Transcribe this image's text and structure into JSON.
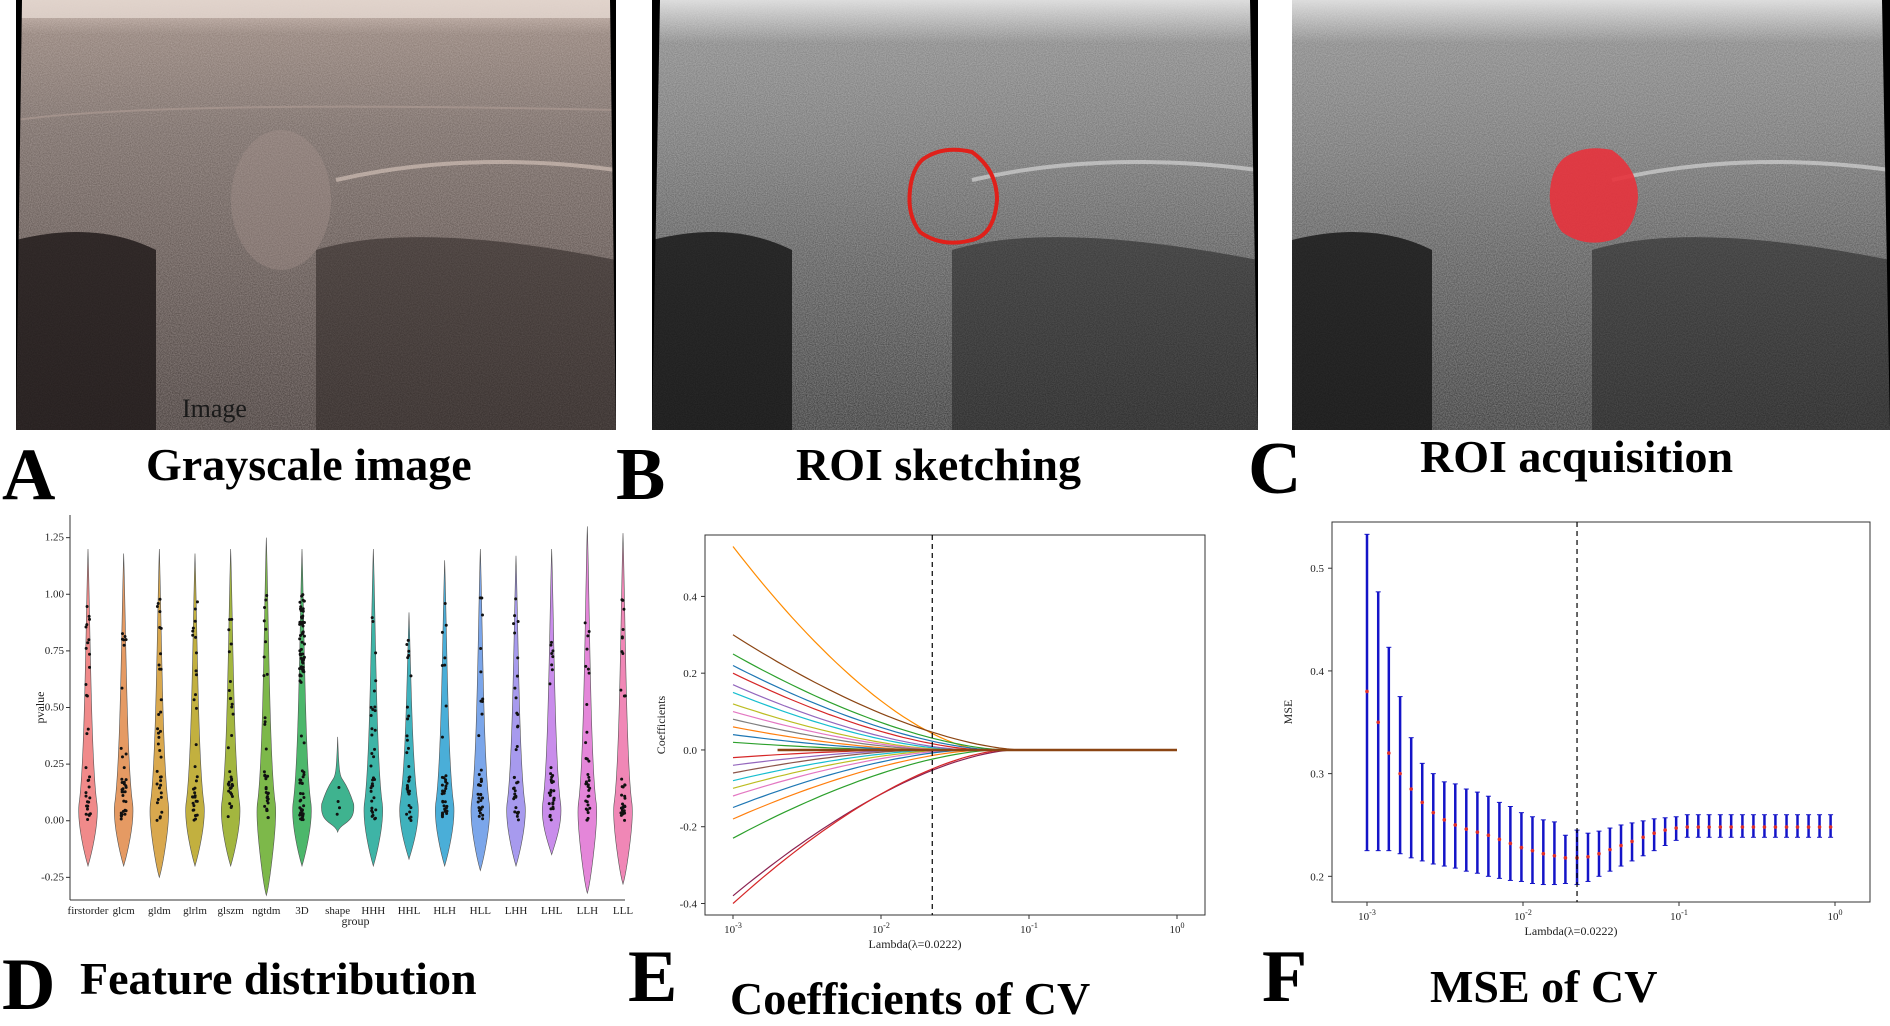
{
  "figure": {
    "panels": [
      {
        "letter": "A",
        "caption": "Grayscale image",
        "watermark": "Image"
      },
      {
        "letter": "B",
        "caption": "ROI sketching"
      },
      {
        "letter": "C",
        "caption": "ROI acquisition"
      },
      {
        "letter": "D",
        "caption": "Feature distribution"
      },
      {
        "letter": "E",
        "caption": "Coefficients of CV"
      },
      {
        "letter": "F",
        "caption": "MSE of CV"
      }
    ],
    "colors": {
      "roi_outline": "#e0201a",
      "roi_fill": "#e8323c",
      "lambda_line": "#000000",
      "mse_bar": "#1414c8",
      "mse_point": "#e0302a"
    }
  },
  "chart_data": [
    {
      "type": "violin",
      "panel": "D",
      "xlabel": "group",
      "ylabel": "pvalue",
      "yticks": [
        "-0.25",
        "0.00",
        "0.25",
        "0.50",
        "0.75",
        "1.00",
        "1.25"
      ],
      "ylim": [
        -0.35,
        1.35
      ],
      "categories": [
        "firstorder",
        "glcm",
        "gldm",
        "glrlm",
        "glszm",
        "ngtdm",
        "3D",
        "shape",
        "HHH",
        "HHL",
        "HLH",
        "HLL",
        "LHH",
        "LHL",
        "LLH",
        "LLL"
      ],
      "colors": [
        "#f08a8a",
        "#e59a63",
        "#d9a84e",
        "#c2b03f",
        "#a3b63f",
        "#7db84a",
        "#4cb76b",
        "#3fb38f",
        "#3eb4a6",
        "#3fb2bd",
        "#4aaed8",
        "#7ba6ea",
        "#a79aee",
        "#c98deb",
        "#e486d9",
        "#f087b6"
      ],
      "ranges": [
        [
          -0.2,
          1.2
        ],
        [
          -0.2,
          1.18
        ],
        [
          -0.25,
          1.2
        ],
        [
          -0.2,
          1.18
        ],
        [
          -0.2,
          1.2
        ],
        [
          -0.33,
          1.25
        ],
        [
          -0.2,
          1.2
        ],
        [
          -0.05,
          0.37
        ],
        [
          -0.2,
          1.2
        ],
        [
          -0.17,
          0.92
        ],
        [
          -0.2,
          1.15
        ],
        [
          -0.22,
          1.2
        ],
        [
          -0.2,
          1.17
        ],
        [
          -0.15,
          1.2
        ],
        [
          -0.32,
          1.3
        ],
        [
          -0.28,
          1.27
        ]
      ]
    },
    {
      "type": "line",
      "panel": "E",
      "xlabel": "Lambda(λ=0.0222)",
      "ylabel": "Coefficients",
      "xscale": "log",
      "xlim": [
        0.001,
        1
      ],
      "xticks": [
        "10^-3",
        "10^-2",
        "10^-1",
        "10^0"
      ],
      "ylim": [
        -0.43,
        0.56
      ],
      "yticks": [
        "-0.4",
        "-0.2",
        "0.0",
        "0.2",
        "0.4"
      ],
      "selected_lambda": 0.0222,
      "series": [
        {
          "start": 0.53,
          "zero_at": 0.05,
          "color": "#ff8c00"
        },
        {
          "start": 0.3,
          "zero_at": 0.09,
          "color": "#8b4513"
        },
        {
          "start": 0.25,
          "zero_at": 0.07,
          "color": "#2ca02c"
        },
        {
          "start": 0.22,
          "zero_at": 0.06,
          "color": "#1f77b4"
        },
        {
          "start": 0.2,
          "zero_at": 0.05,
          "color": "#d62728"
        },
        {
          "start": 0.17,
          "zero_at": 0.04,
          "color": "#9467bd"
        },
        {
          "start": 0.15,
          "zero_at": 0.035,
          "color": "#17becf"
        },
        {
          "start": 0.12,
          "zero_at": 0.03,
          "color": "#bcbd22"
        },
        {
          "start": 0.1,
          "zero_at": 0.028,
          "color": "#e377c2"
        },
        {
          "start": 0.08,
          "zero_at": 0.025,
          "color": "#7f7f7f"
        },
        {
          "start": 0.06,
          "zero_at": 0.02,
          "color": "#ff7f0e"
        },
        {
          "start": 0.04,
          "zero_at": 0.018,
          "color": "#1f77b4"
        },
        {
          "start": 0.02,
          "zero_at": 0.015,
          "color": "#2ca02c"
        },
        {
          "start": -0.02,
          "zero_at": 0.015,
          "color": "#d62728"
        },
        {
          "start": -0.04,
          "zero_at": 0.018,
          "color": "#9467bd"
        },
        {
          "start": -0.06,
          "zero_at": 0.02,
          "color": "#8c564b"
        },
        {
          "start": -0.08,
          "zero_at": 0.025,
          "color": "#17becf"
        },
        {
          "start": -0.1,
          "zero_at": 0.03,
          "color": "#bcbd22"
        },
        {
          "start": -0.12,
          "zero_at": 0.035,
          "color": "#e377c2"
        },
        {
          "start": -0.15,
          "zero_at": 0.04,
          "color": "#1f77b4"
        },
        {
          "start": -0.18,
          "zero_at": 0.05,
          "color": "#ff7f0e"
        },
        {
          "start": -0.23,
          "zero_at": 0.06,
          "color": "#2ca02c"
        },
        {
          "start": -0.38,
          "zero_at": 0.08,
          "color": "#8b2252"
        },
        {
          "start": -0.4,
          "zero_at": 0.07,
          "color": "#d62728"
        }
      ]
    },
    {
      "type": "errorbar",
      "panel": "F",
      "xlabel": "Lambda(λ=0.0222)",
      "ylabel": "MSE",
      "xscale": "log",
      "xlim": [
        0.001,
        1
      ],
      "xticks": [
        "10^-3",
        "10^-2",
        "10^-1",
        "10^0"
      ],
      "ylim": [
        0.175,
        0.545
      ],
      "yticks": [
        "0.2",
        "0.3",
        "0.4",
        "0.5"
      ],
      "selected_lambda": 0.0222,
      "x": [
        0.001,
        0.00118,
        0.00138,
        0.00163,
        0.00192,
        0.00226,
        0.00266,
        0.00313,
        0.00368,
        0.00433,
        0.0051,
        0.006,
        0.00706,
        0.0083,
        0.00977,
        0.0115,
        0.0135,
        0.0159,
        0.0187,
        0.0222,
        0.0261,
        0.0307,
        0.0361,
        0.0425,
        0.05,
        0.0589,
        0.0693,
        0.0815,
        0.0959,
        0.113,
        0.133,
        0.156,
        0.184,
        0.216,
        0.255,
        0.3,
        0.353,
        0.415,
        0.489,
        0.575,
        0.677,
        0.796,
        0.937
      ],
      "mean": [
        0.38,
        0.35,
        0.32,
        0.3,
        0.285,
        0.272,
        0.262,
        0.255,
        0.25,
        0.246,
        0.243,
        0.24,
        0.236,
        0.232,
        0.228,
        0.225,
        0.222,
        0.22,
        0.218,
        0.218,
        0.219,
        0.222,
        0.226,
        0.23,
        0.234,
        0.238,
        0.242,
        0.245,
        0.247,
        0.248,
        0.248,
        0.248,
        0.248,
        0.248,
        0.248,
        0.248,
        0.248,
        0.248,
        0.248,
        0.248,
        0.248,
        0.248,
        0.248
      ],
      "upper": [
        0.533,
        0.477,
        0.423,
        0.375,
        0.335,
        0.31,
        0.3,
        0.292,
        0.29,
        0.285,
        0.282,
        0.278,
        0.272,
        0.268,
        0.262,
        0.258,
        0.255,
        0.253,
        0.24,
        0.245,
        0.242,
        0.244,
        0.247,
        0.25,
        0.252,
        0.254,
        0.256,
        0.257,
        0.258,
        0.26,
        0.26,
        0.26,
        0.26,
        0.26,
        0.26,
        0.26,
        0.26,
        0.26,
        0.26,
        0.26,
        0.26,
        0.26,
        0.26
      ],
      "lower": [
        0.225,
        0.225,
        0.225,
        0.222,
        0.218,
        0.215,
        0.212,
        0.21,
        0.208,
        0.205,
        0.203,
        0.2,
        0.198,
        0.196,
        0.195,
        0.193,
        0.192,
        0.192,
        0.193,
        0.192,
        0.195,
        0.2,
        0.205,
        0.21,
        0.215,
        0.22,
        0.225,
        0.23,
        0.235,
        0.238,
        0.238,
        0.238,
        0.238,
        0.238,
        0.238,
        0.238,
        0.238,
        0.238,
        0.238,
        0.238,
        0.238,
        0.238,
        0.238
      ]
    }
  ]
}
